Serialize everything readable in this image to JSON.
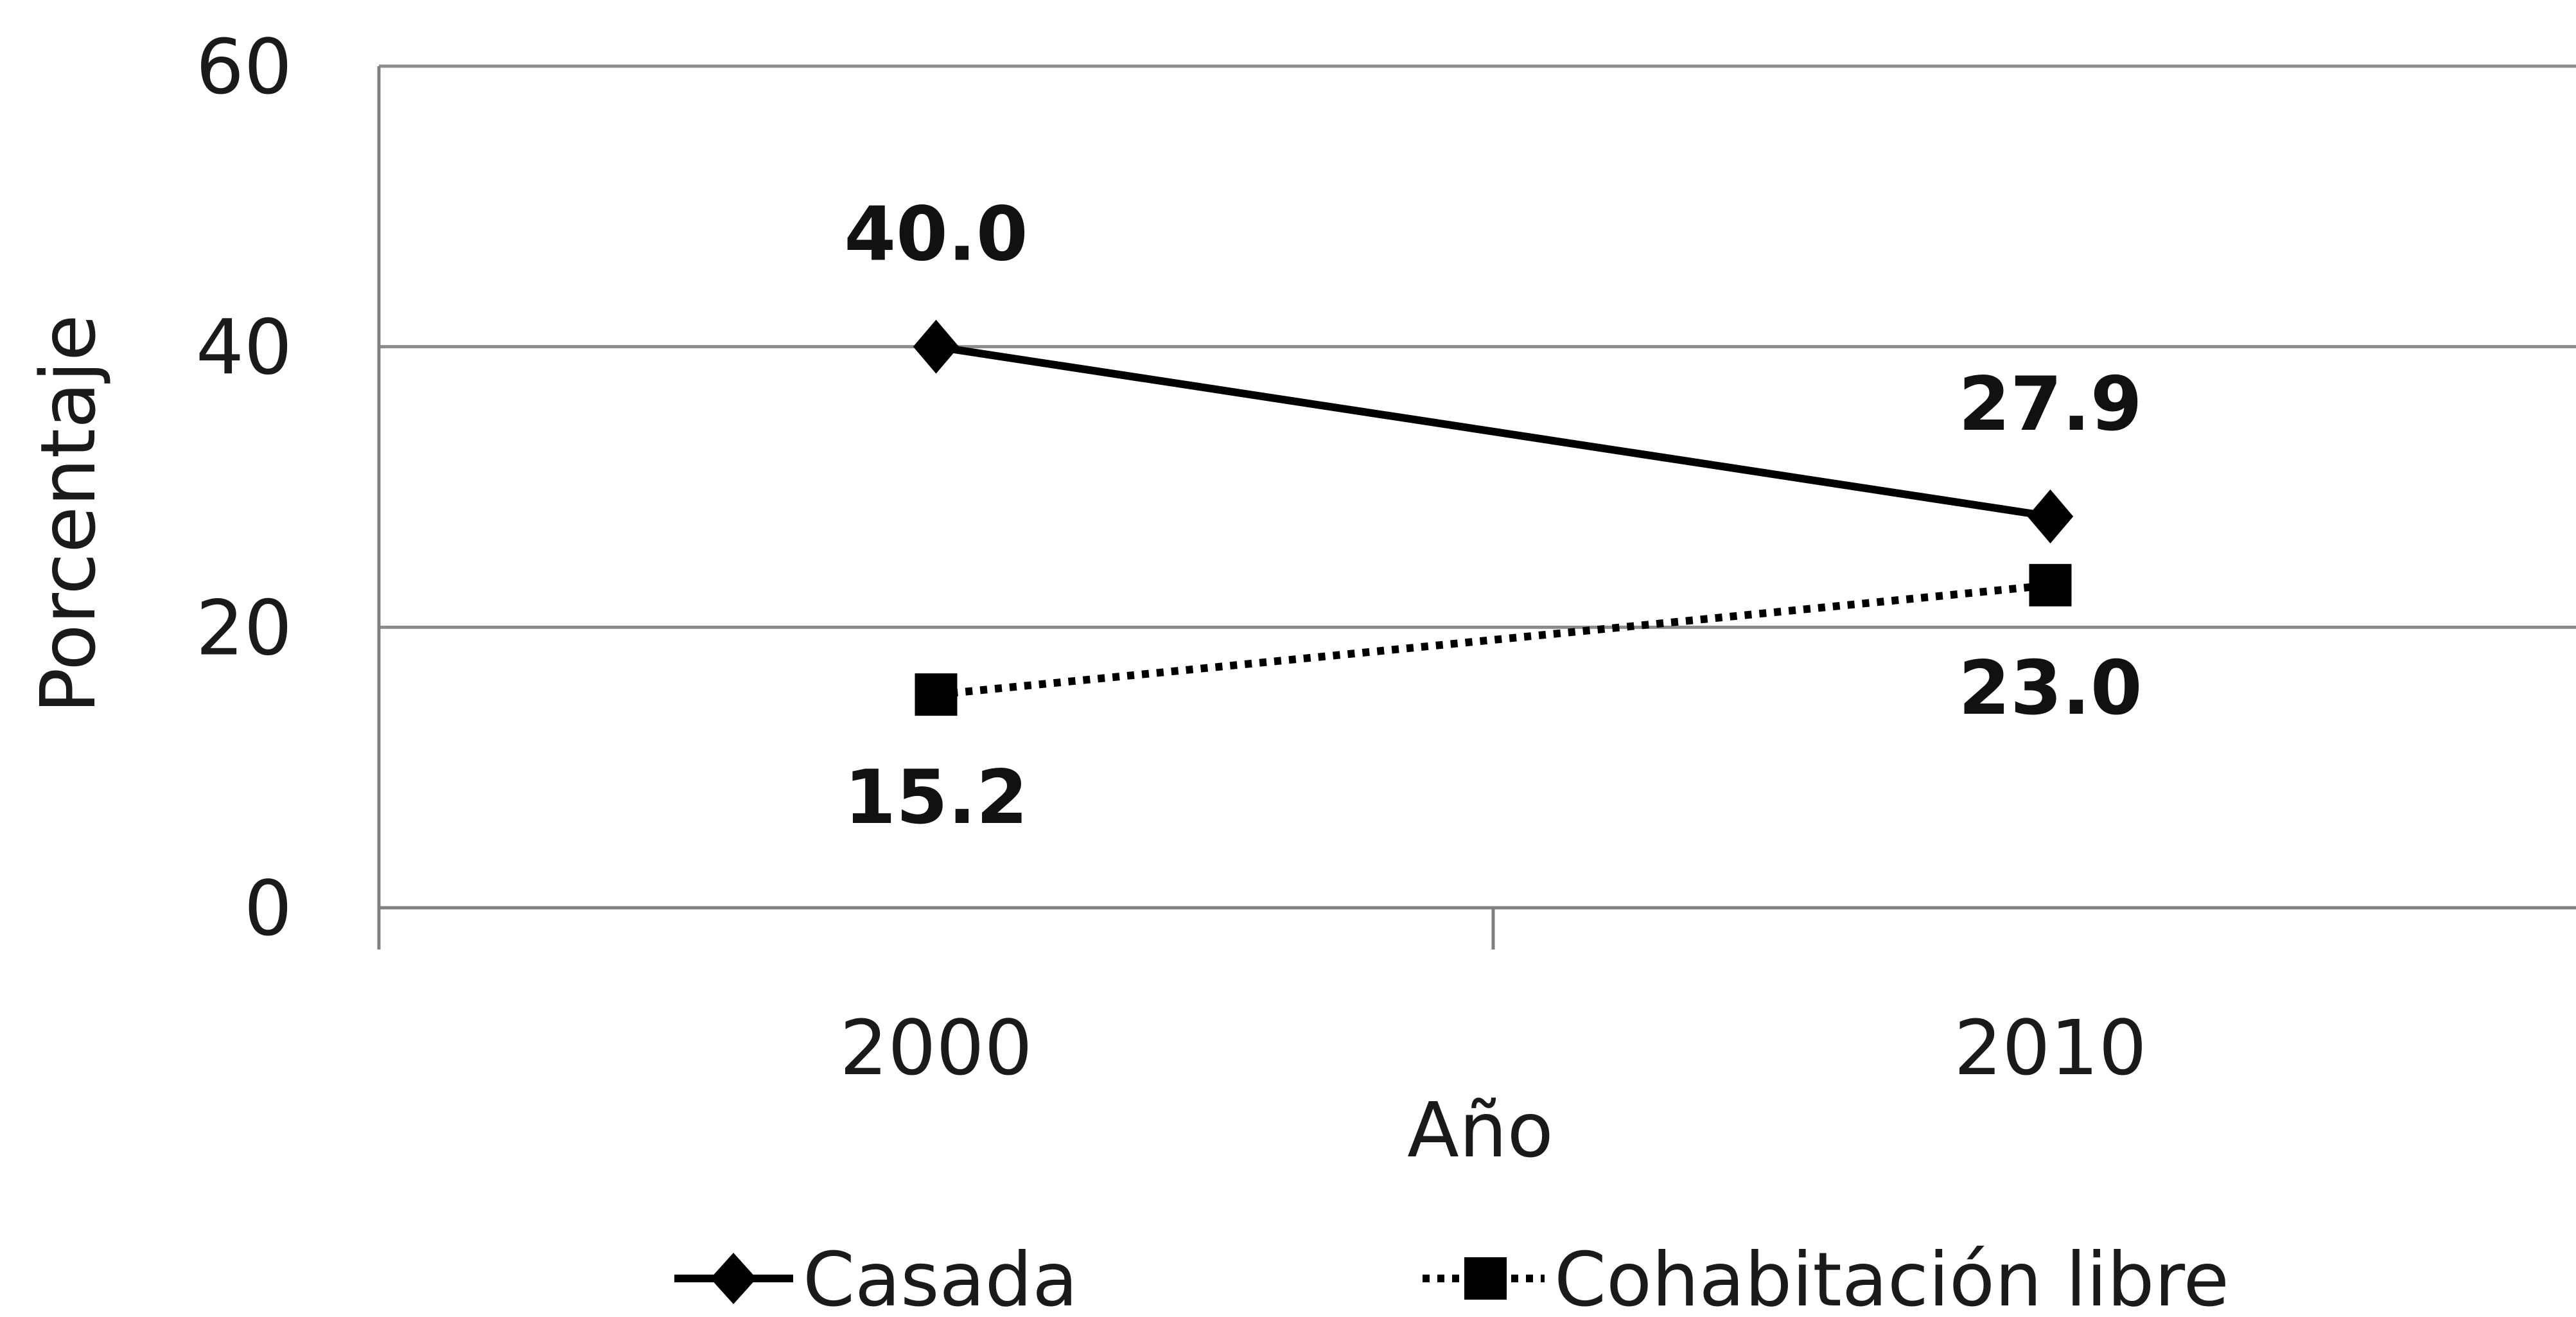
{
  "chart_data": {
    "type": "line",
    "x": [
      "2000",
      "2010"
    ],
    "xlabel": "Año",
    "ylabel": "Porcentaje",
    "ylim": [
      0,
      60
    ],
    "yticks": [
      "0",
      "20",
      "40",
      "60"
    ],
    "grid": true,
    "legend_position": "bottom",
    "series": [
      {
        "name": "Casada",
        "values": [
          40.0,
          27.9
        ],
        "labels": [
          "40.0",
          "27.9"
        ],
        "line_style": "solid",
        "marker": "diamond",
        "color": "#000000"
      },
      {
        "name": "Cohabitación libre",
        "values": [
          15.2,
          23.0
        ],
        "labels": [
          "15.2",
          "23.0"
        ],
        "line_style": "dotted",
        "marker": "square",
        "color": "#000000"
      }
    ]
  }
}
